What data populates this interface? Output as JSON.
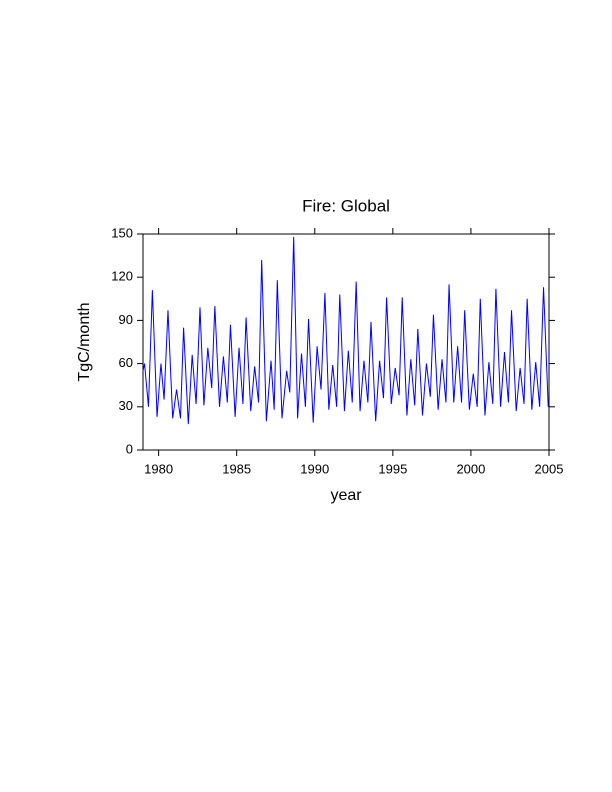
{
  "chart_data": {
    "type": "line",
    "title": "Fire: Global",
    "xlabel": "year",
    "ylabel": "TgC/month",
    "color": "#0000ff",
    "x": [
      1979.0,
      1979.1,
      1979.35,
      1979.6,
      1979.9,
      1980.15,
      1980.35,
      1980.6,
      1980.9,
      1981.15,
      1981.4,
      1981.6,
      1981.9,
      1982.15,
      1982.4,
      1982.65,
      1982.9,
      1983.15,
      1983.4,
      1983.6,
      1983.9,
      1984.15,
      1984.4,
      1984.6,
      1984.9,
      1985.15,
      1985.4,
      1985.6,
      1985.9,
      1986.15,
      1986.4,
      1986.6,
      1986.9,
      1987.2,
      1987.4,
      1987.6,
      1987.9,
      1988.2,
      1988.4,
      1988.65,
      1988.9,
      1989.15,
      1989.4,
      1989.6,
      1989.9,
      1990.15,
      1990.4,
      1990.65,
      1990.9,
      1991.15,
      1991.4,
      1991.6,
      1991.9,
      1992.15,
      1992.4,
      1992.65,
      1992.9,
      1993.15,
      1993.4,
      1993.6,
      1993.9,
      1994.15,
      1994.4,
      1994.6,
      1994.9,
      1995.15,
      1995.4,
      1995.6,
      1995.9,
      1996.15,
      1996.4,
      1996.6,
      1996.9,
      1997.15,
      1997.4,
      1997.6,
      1997.9,
      1998.15,
      1998.4,
      1998.6,
      1998.9,
      1999.15,
      1999.4,
      1999.6,
      1999.9,
      2000.15,
      2000.4,
      2000.6,
      2000.9,
      2001.15,
      2001.4,
      2001.6,
      2001.9,
      2002.15,
      2002.4,
      2002.6,
      2002.9,
      2003.15,
      2003.4,
      2003.6,
      2003.9,
      2004.15,
      2004.4,
      2004.65,
      2004.95
    ],
    "values": [
      55,
      60,
      30,
      111,
      23,
      60,
      35,
      97,
      22,
      42,
      22,
      85,
      18,
      66,
      32,
      99,
      31,
      71,
      43,
      100,
      30,
      65,
      33,
      87,
      23,
      71,
      32,
      92,
      27,
      58,
      33,
      132,
      20,
      62,
      28,
      118,
      22,
      55,
      40,
      148,
      22,
      67,
      30,
      91,
      19,
      72,
      42,
      109,
      28,
      59,
      30,
      108,
      27,
      69,
      33,
      117,
      27,
      62,
      33,
      89,
      20,
      62,
      36,
      106,
      32,
      57,
      38,
      106,
      24,
      63,
      31,
      84,
      24,
      60,
      37,
      94,
      28,
      63,
      33,
      115,
      33,
      72,
      33,
      97,
      28,
      53,
      30,
      105,
      24,
      61,
      32,
      112,
      30,
      68,
      33,
      97,
      27,
      57,
      32,
      105,
      28,
      61,
      30,
      113,
      30
    ],
    "xlim": [
      1979,
      2005
    ],
    "xticks": [
      1980,
      1985,
      1990,
      1995,
      2000,
      2005
    ],
    "ylim": [
      0,
      150
    ],
    "yticks": [
      0,
      30,
      60,
      90,
      120,
      150
    ]
  }
}
